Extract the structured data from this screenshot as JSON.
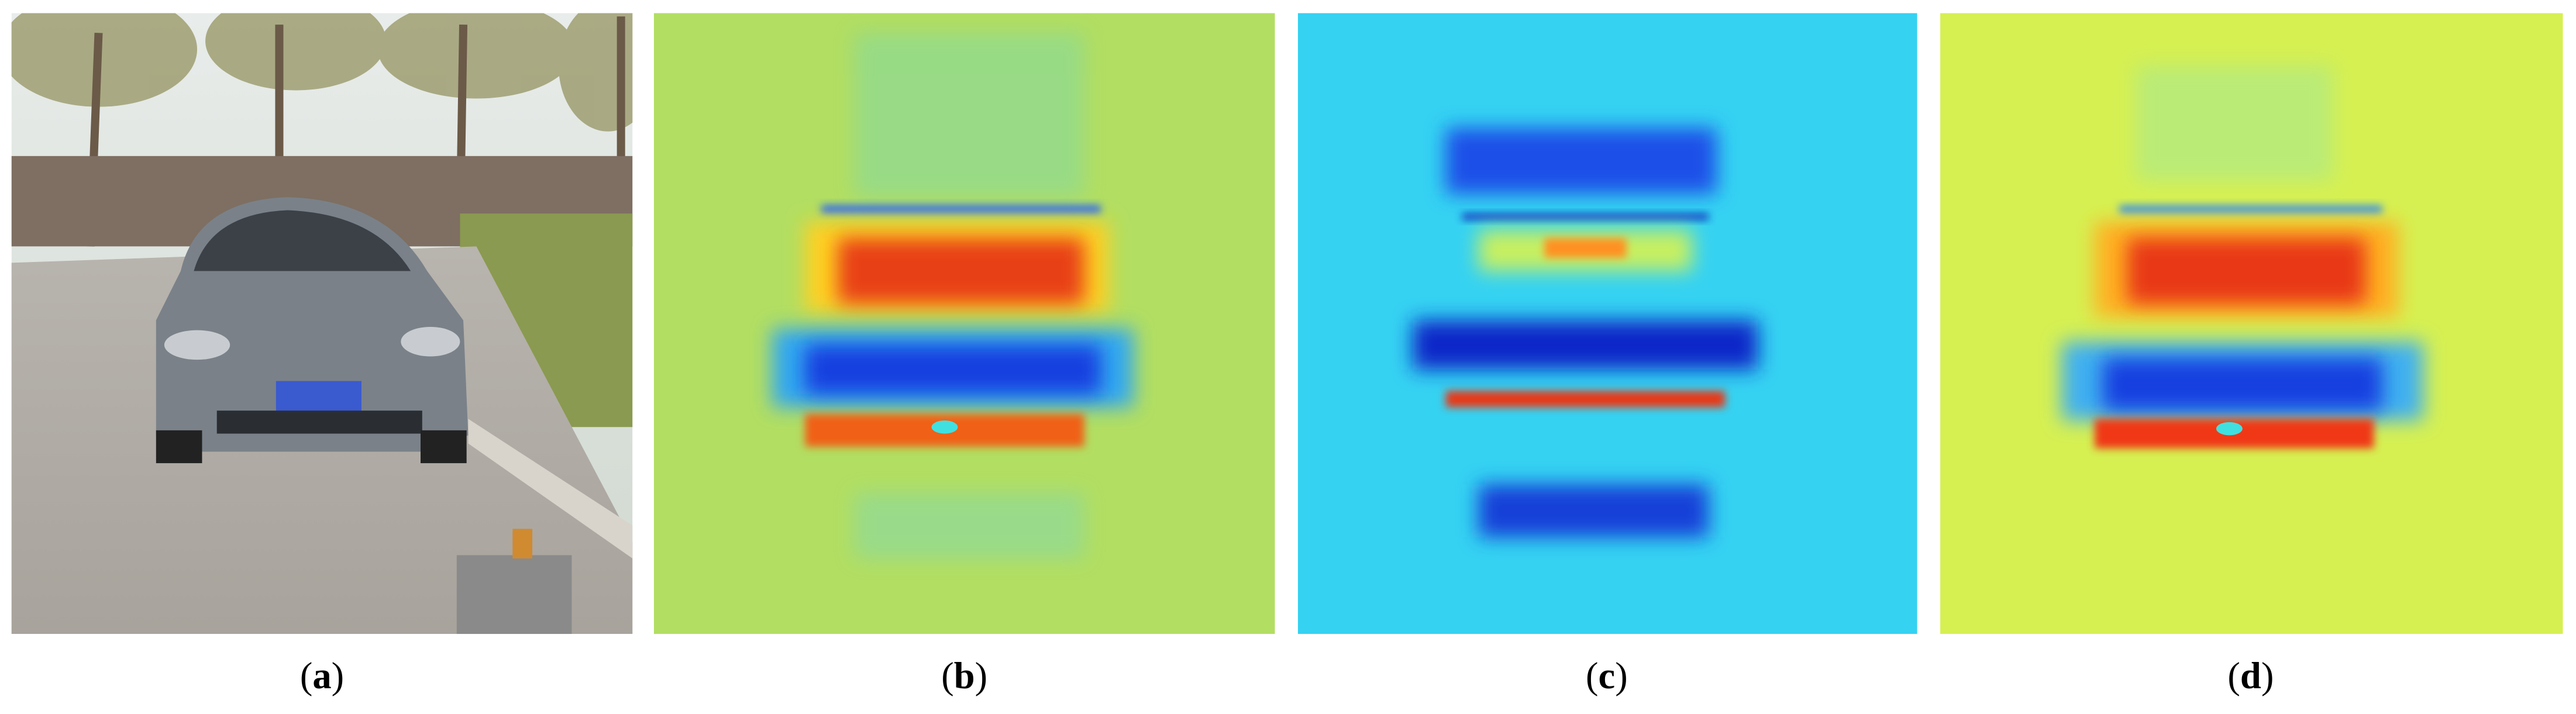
{
  "panels": [
    {
      "caption": [
        "(",
        "a",
        ")"
      ]
    },
    {
      "caption": [
        "(",
        "b",
        ")"
      ]
    },
    {
      "caption": [
        "(",
        "c",
        ")"
      ]
    },
    {
      "caption": [
        "(",
        "d",
        ")"
      ]
    }
  ]
}
